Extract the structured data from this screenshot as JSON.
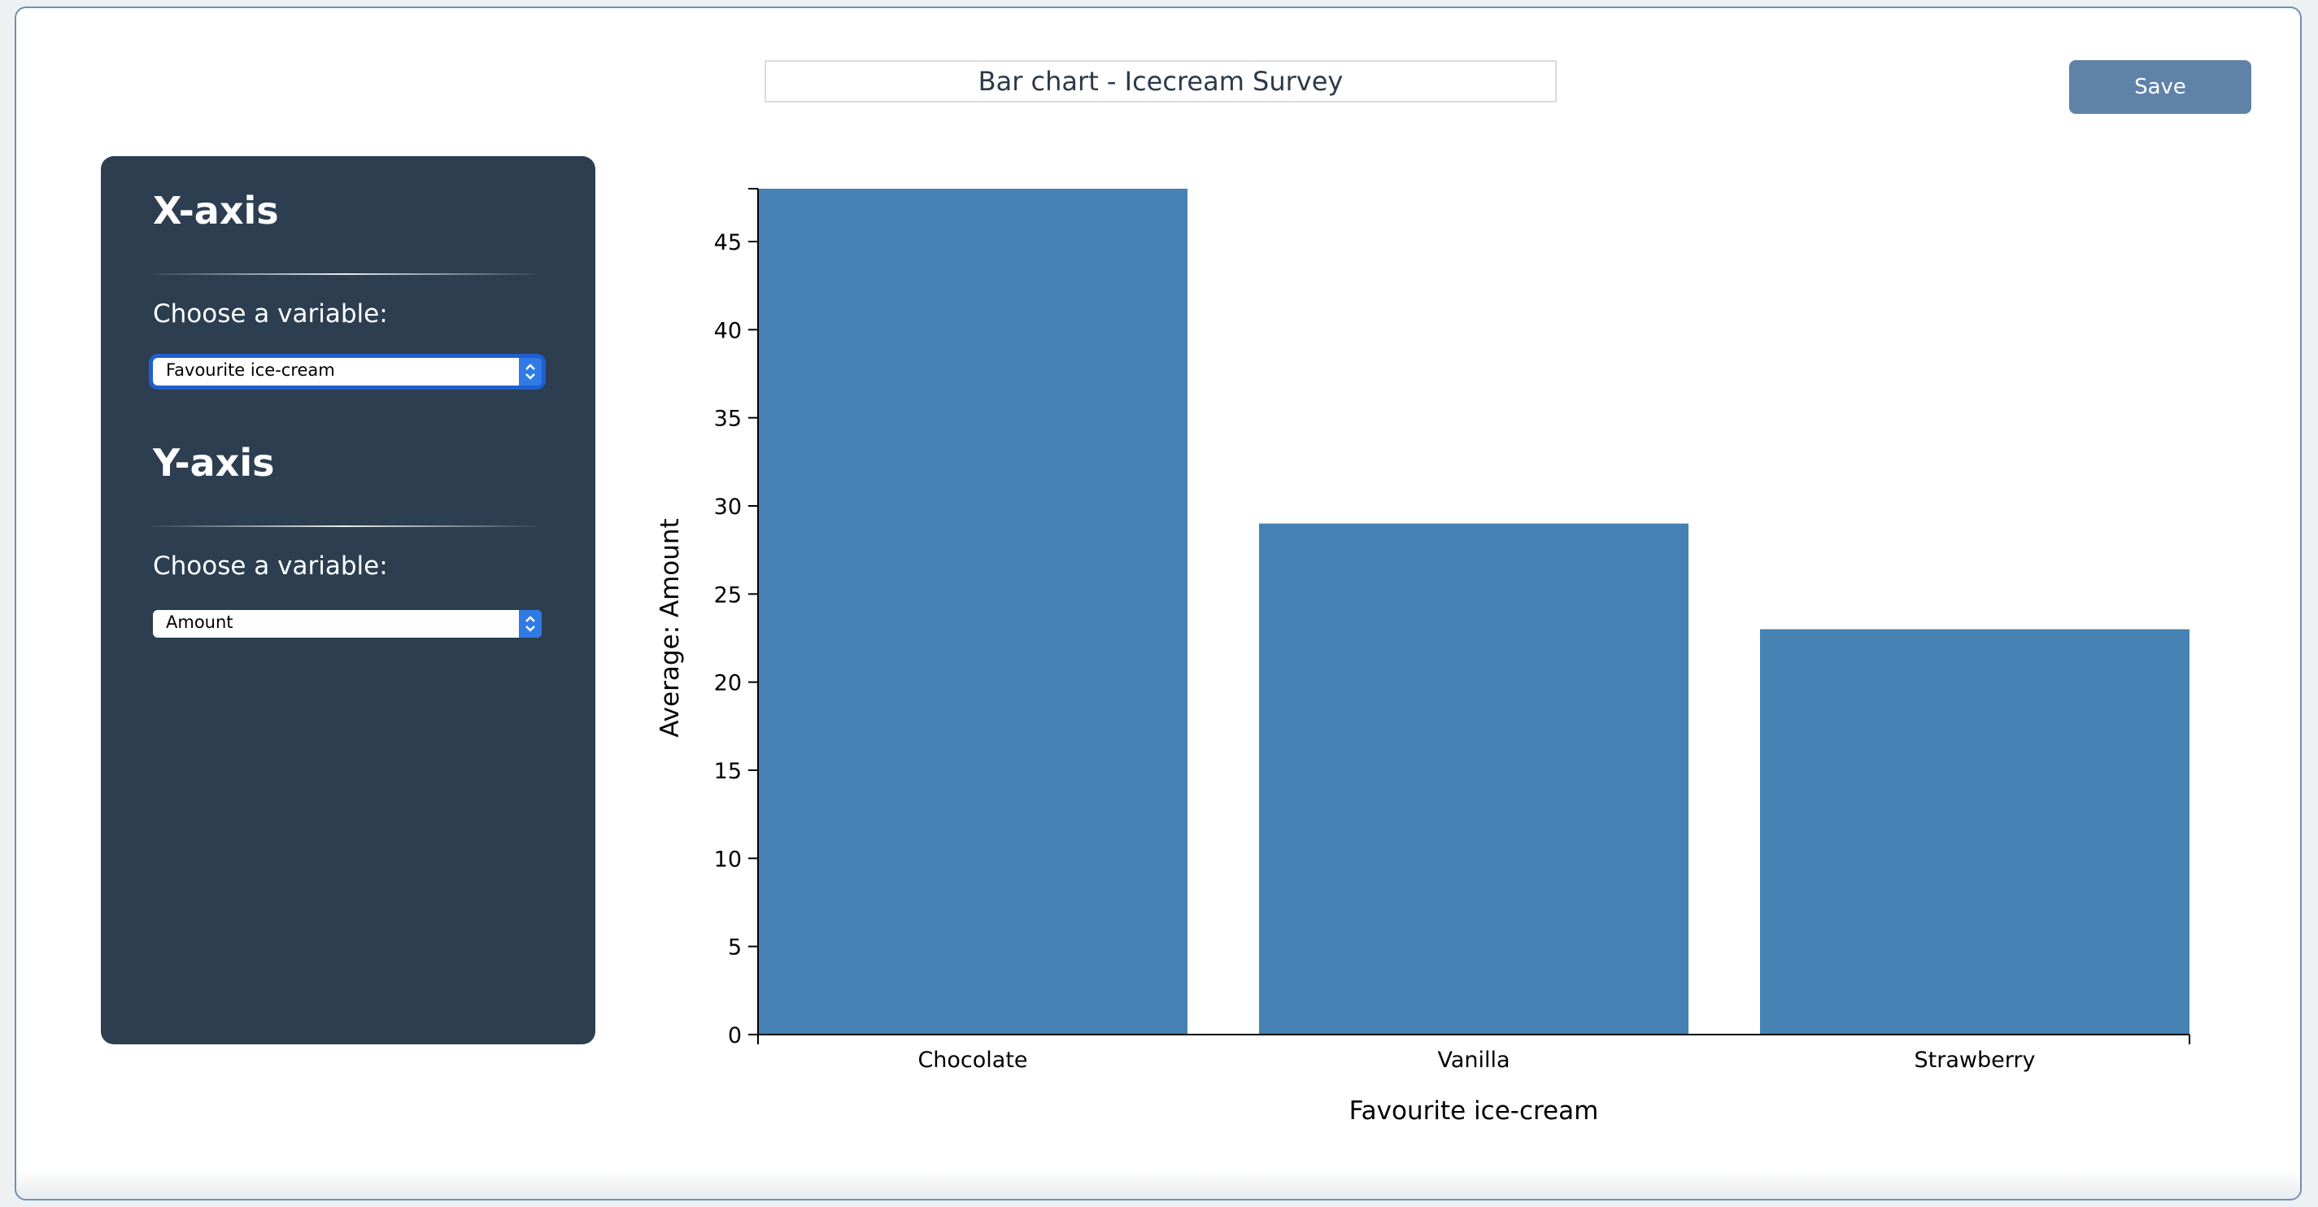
{
  "header": {
    "title_value": "Bar chart - Icecream Survey",
    "save_label": "Save"
  },
  "sidebar": {
    "x_axis": {
      "heading": "X-axis",
      "choose_label": "Choose a variable:",
      "selected": "Favourite ice-cream"
    },
    "y_axis": {
      "heading": "Y-axis",
      "choose_label": "Choose a variable:",
      "selected": "Amount"
    }
  },
  "colors": {
    "bar": "#4682b4",
    "sidebar": "#2c3e50",
    "accent": "#5f82a8"
  },
  "icons": [
    "chevron-updown-icon"
  ],
  "chart_data": {
    "type": "bar",
    "categories": [
      "Chocolate",
      "Vanilla",
      "Strawberry"
    ],
    "values": [
      48,
      29,
      23
    ],
    "xlabel": "Favourite ice-cream",
    "ylabel": "Average: Amount",
    "ylim": [
      0,
      48
    ],
    "yticks": [
      0,
      5,
      10,
      15,
      20,
      25,
      30,
      35,
      40,
      45
    ],
    "grid": false
  }
}
